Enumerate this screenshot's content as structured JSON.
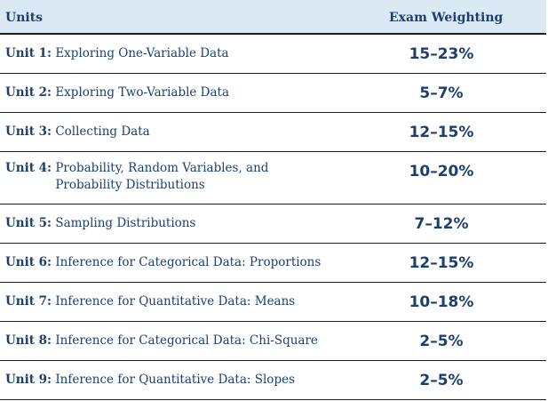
{
  "header": {
    "units": "Units",
    "exam_weighting": "Exam Weighting"
  },
  "rows": [
    {
      "unit": "Unit 1:",
      "title": "Exploring One-Variable Data",
      "weight": "15–23%"
    },
    {
      "unit": "Unit 2:",
      "title": "Exploring Two-Variable Data",
      "weight": "5–7%"
    },
    {
      "unit": "Unit 3:",
      "title": "Collecting Data",
      "weight": "12–15%"
    },
    {
      "unit": "Unit 4:",
      "title": "Probability, Random Variables, and Probability Distributions",
      "weight": "10–20%"
    },
    {
      "unit": "Unit 5:",
      "title": "Sampling Distributions",
      "weight": "7–12%"
    },
    {
      "unit": "Unit 6:",
      "title": "Inference for Categorical Data: Proportions",
      "weight": "12–15%"
    },
    {
      "unit": "Unit 7:",
      "title": "Inference for Quantitative Data: Means",
      "weight": "10–18%"
    },
    {
      "unit": "Unit 8:",
      "title": "Inference for Categorical Data: Chi-Square",
      "weight": "2–5%"
    },
    {
      "unit": "Unit 9:",
      "title": "Inference for Quantitative Data: Slopes",
      "weight": "2–5%"
    }
  ],
  "colors": {
    "text": "#1c3f6e",
    "header_background": "#dbe9f5",
    "rule": "#1e1e1e"
  }
}
